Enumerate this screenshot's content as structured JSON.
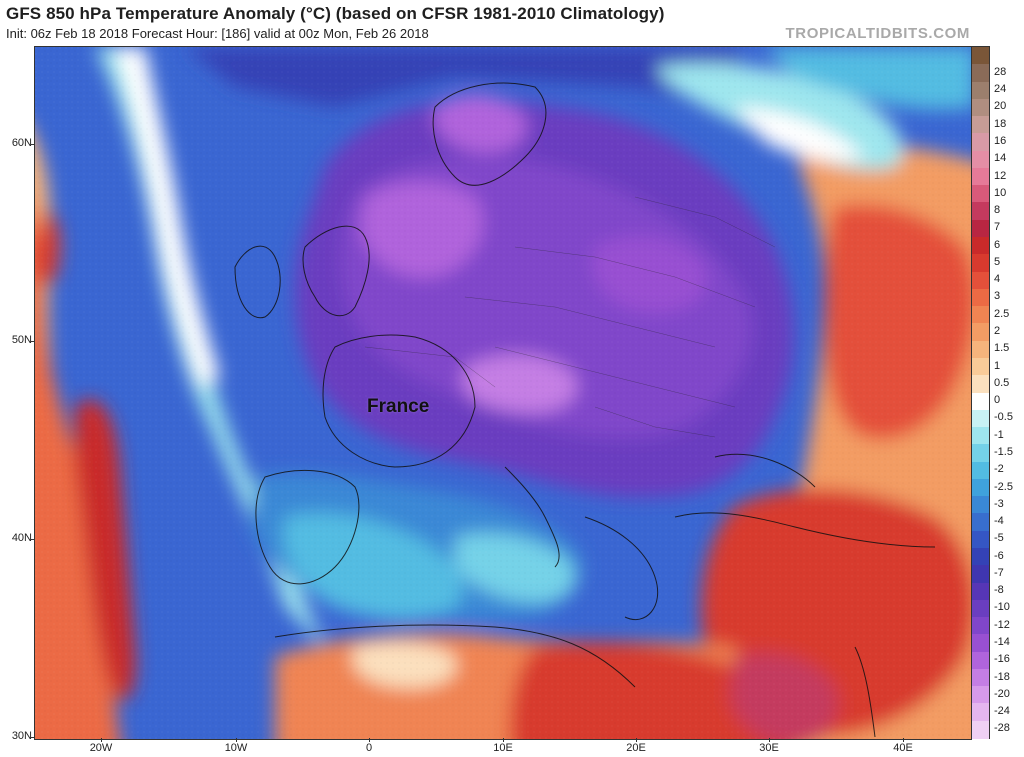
{
  "header": {
    "title": "GFS 850 hPa Temperature Anomaly (°C) (based on CFSR 1981-2010 Climatology)",
    "subtitle": "Init: 06z Feb 18 2018   Forecast Hour: [186]   valid at 00z Mon, Feb 26 2018",
    "watermark": "TROPICALTIDBITS.COM"
  },
  "map": {
    "place_label": "France",
    "lat_labels": [
      "60N",
      "50N",
      "40N",
      "30N"
    ],
    "lon_labels": [
      "20W",
      "10W",
      "0",
      "10E",
      "20E",
      "30E",
      "40E"
    ]
  },
  "colorbar": {
    "levels": [
      {
        "label": "",
        "color": "#7a5638"
      },
      {
        "label": "28",
        "color": "#8a6b58"
      },
      {
        "label": "24",
        "color": "#9c7f6d"
      },
      {
        "label": "20",
        "color": "#b08e80"
      },
      {
        "label": "18",
        "color": "#c79c96"
      },
      {
        "label": "16",
        "color": "#d89aa6"
      },
      {
        "label": "14",
        "color": "#e48ea5"
      },
      {
        "label": "12",
        "color": "#e67a98"
      },
      {
        "label": "10",
        "color": "#d85a7a"
      },
      {
        "label": "8",
        "color": "#c43a5e"
      },
      {
        "label": "7",
        "color": "#b82642"
      },
      {
        "label": "6",
        "color": "#c92a2a"
      },
      {
        "label": "5",
        "color": "#d83a2e"
      },
      {
        "label": "4",
        "color": "#e4503a"
      },
      {
        "label": "3",
        "color": "#ec6a44"
      },
      {
        "label": "2.5",
        "color": "#f08452"
      },
      {
        "label": "2",
        "color": "#f39c64"
      },
      {
        "label": "1.5",
        "color": "#f6b47c"
      },
      {
        "label": "1",
        "color": "#f9cb98"
      },
      {
        "label": "0.5",
        "color": "#fbe0be"
      },
      {
        "label": "0",
        "color": "#ffffff"
      },
      {
        "label": "-0.5",
        "color": "#c8f2f4"
      },
      {
        "label": "-1",
        "color": "#9ee6ee"
      },
      {
        "label": "-1.5",
        "color": "#74d2e8"
      },
      {
        "label": "-2",
        "color": "#52bce2"
      },
      {
        "label": "-2.5",
        "color": "#3fa2dc"
      },
      {
        "label": "-3",
        "color": "#3a88d6"
      },
      {
        "label": "-4",
        "color": "#386ece"
      },
      {
        "label": "-5",
        "color": "#3556c4"
      },
      {
        "label": "-6",
        "color": "#3442b6"
      },
      {
        "label": "-7",
        "color": "#3f36b0"
      },
      {
        "label": "-8",
        "color": "#5636b6"
      },
      {
        "label": "-10",
        "color": "#6a3ec0"
      },
      {
        "label": "-12",
        "color": "#8046ca"
      },
      {
        "label": "-14",
        "color": "#9850d2"
      },
      {
        "label": "-16",
        "color": "#b064dc"
      },
      {
        "label": "-18",
        "color": "#c47ee4"
      },
      {
        "label": "-20",
        "color": "#d69aea"
      },
      {
        "label": "-24",
        "color": "#e4b6ef"
      },
      {
        "label": "-28",
        "color": "#efd0f4"
      }
    ]
  }
}
